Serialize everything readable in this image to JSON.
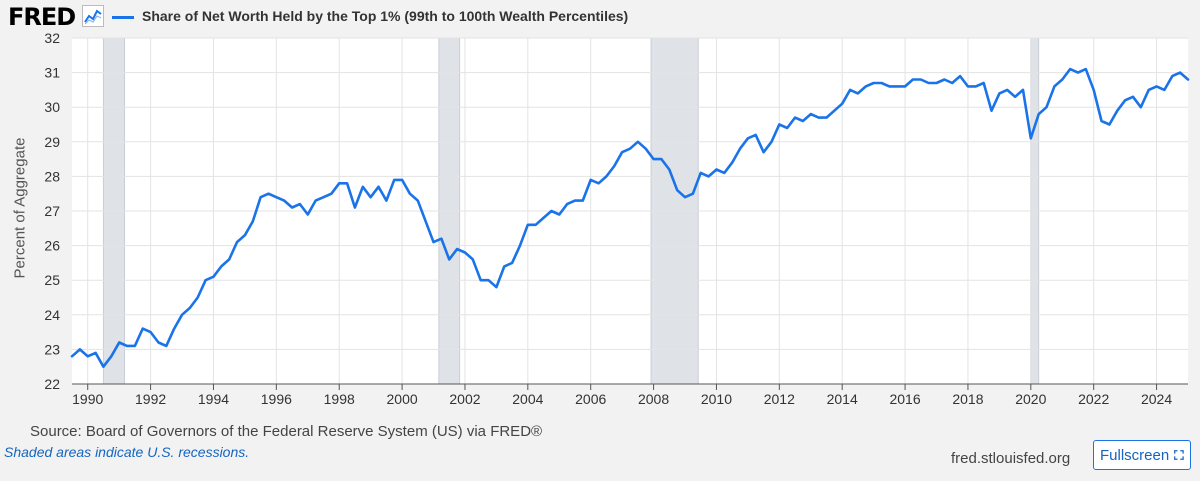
{
  "brand": {
    "name": "FRED",
    "icon": "chart-line-icon"
  },
  "colors": {
    "series": "#1a73e8",
    "recession": "#dfe3e8",
    "link": "#1565c0"
  },
  "footer": {
    "source": "Source: Board of Governors of the Federal Reserve System (US) via FRED®",
    "recession_note": "Shaded areas indicate U.S. recessions.",
    "site": "fred.stlouisfed.org",
    "fullscreen_label": "Fullscreen",
    "fullscreen_icon": "fullscreen-icon"
  },
  "chart_data": {
    "type": "line",
    "title": "Share of Net Worth Held by the Top 1% (99th to 100th Wealth Percentiles)",
    "xlabel": "",
    "ylabel": "Percent of Aggregate",
    "xlim": [
      1989.5,
      2025.0
    ],
    "ylim": [
      22,
      32
    ],
    "x_ticks": [
      1990,
      1992,
      1994,
      1996,
      1998,
      2000,
      2002,
      2004,
      2006,
      2008,
      2010,
      2012,
      2014,
      2016,
      2018,
      2020,
      2022,
      2024
    ],
    "y_ticks": [
      22,
      23,
      24,
      25,
      26,
      27,
      28,
      29,
      30,
      31,
      32
    ],
    "grid": true,
    "recessions": [
      [
        1990.5,
        1991.17
      ],
      [
        2001.17,
        2001.83
      ],
      [
        2007.92,
        2009.42
      ],
      [
        2020.0,
        2020.25
      ]
    ],
    "series": [
      {
        "name": "Share of Net Worth Held by the Top 1% (99th to 100th Wealth Percentiles)",
        "x": [
          1989.5,
          1989.75,
          1990,
          1990.25,
          1990.5,
          1990.75,
          1991,
          1991.25,
          1991.5,
          1991.75,
          1992,
          1992.25,
          1992.5,
          1992.75,
          1993,
          1993.25,
          1993.5,
          1993.75,
          1994,
          1994.25,
          1994.5,
          1994.75,
          1995,
          1995.25,
          1995.5,
          1995.75,
          1996,
          1996.25,
          1996.5,
          1996.75,
          1997,
          1997.25,
          1997.5,
          1997.75,
          1998,
          1998.25,
          1998.5,
          1998.75,
          1999,
          1999.25,
          1999.5,
          1999.75,
          2000,
          2000.25,
          2000.5,
          2000.75,
          2001,
          2001.25,
          2001.5,
          2001.75,
          2002,
          2002.25,
          2002.5,
          2002.75,
          2003,
          2003.25,
          2003.5,
          2003.75,
          2004,
          2004.25,
          2004.5,
          2004.75,
          2005,
          2005.25,
          2005.5,
          2005.75,
          2006,
          2006.25,
          2006.5,
          2006.75,
          2007,
          2007.25,
          2007.5,
          2007.75,
          2008,
          2008.25,
          2008.5,
          2008.75,
          2009,
          2009.25,
          2009.5,
          2009.75,
          2010,
          2010.25,
          2010.5,
          2010.75,
          2011,
          2011.25,
          2011.5,
          2011.75,
          2012,
          2012.25,
          2012.5,
          2012.75,
          2013,
          2013.25,
          2013.5,
          2013.75,
          2014,
          2014.25,
          2014.5,
          2014.75,
          2015,
          2015.25,
          2015.5,
          2015.75,
          2016,
          2016.25,
          2016.5,
          2016.75,
          2017,
          2017.25,
          2017.5,
          2017.75,
          2018,
          2018.25,
          2018.5,
          2018.75,
          2019,
          2019.25,
          2019.5,
          2019.75,
          2020,
          2020.25,
          2020.5,
          2020.75,
          2021,
          2021.25,
          2021.5,
          2021.75,
          2022,
          2022.25,
          2022.5,
          2022.75,
          2023,
          2023.25,
          2023.5,
          2023.75,
          2024,
          2024.25,
          2024.5,
          2024.75,
          2025
        ],
        "values": [
          22.8,
          23.0,
          22.8,
          22.9,
          22.5,
          22.8,
          23.2,
          23.1,
          23.1,
          23.6,
          23.5,
          23.2,
          23.1,
          23.6,
          24.0,
          24.2,
          24.5,
          25.0,
          25.1,
          25.4,
          25.6,
          26.1,
          26.3,
          26.7,
          27.4,
          27.5,
          27.4,
          27.3,
          27.1,
          27.2,
          26.9,
          27.3,
          27.4,
          27.5,
          27.8,
          27.8,
          27.1,
          27.7,
          27.4,
          27.7,
          27.3,
          27.9,
          27.9,
          27.5,
          27.3,
          26.7,
          26.1,
          26.2,
          25.6,
          25.9,
          25.8,
          25.6,
          25.0,
          25.0,
          24.8,
          25.4,
          25.5,
          26.0,
          26.6,
          26.6,
          26.8,
          27.0,
          26.9,
          27.2,
          27.3,
          27.3,
          27.9,
          27.8,
          28.0,
          28.3,
          28.7,
          28.8,
          29.0,
          28.8,
          28.5,
          28.5,
          28.2,
          27.6,
          27.4,
          27.5,
          28.1,
          28.0,
          28.2,
          28.1,
          28.4,
          28.8,
          29.1,
          29.2,
          28.7,
          29.0,
          29.5,
          29.4,
          29.7,
          29.6,
          29.8,
          29.7,
          29.7,
          29.9,
          30.1,
          30.5,
          30.4,
          30.6,
          30.7,
          30.7,
          30.6,
          30.6,
          30.6,
          30.8,
          30.8,
          30.7,
          30.7,
          30.8,
          30.7,
          30.9,
          30.6,
          30.6,
          30.7,
          29.9,
          30.4,
          30.5,
          30.3,
          30.5,
          29.1,
          29.8,
          30.0,
          30.6,
          30.8,
          31.1,
          31.0,
          31.1,
          30.5,
          29.6,
          29.5,
          29.9,
          30.2,
          30.3,
          30.0,
          30.5,
          30.6,
          30.5,
          30.9,
          31.0,
          30.8
        ]
      }
    ]
  }
}
